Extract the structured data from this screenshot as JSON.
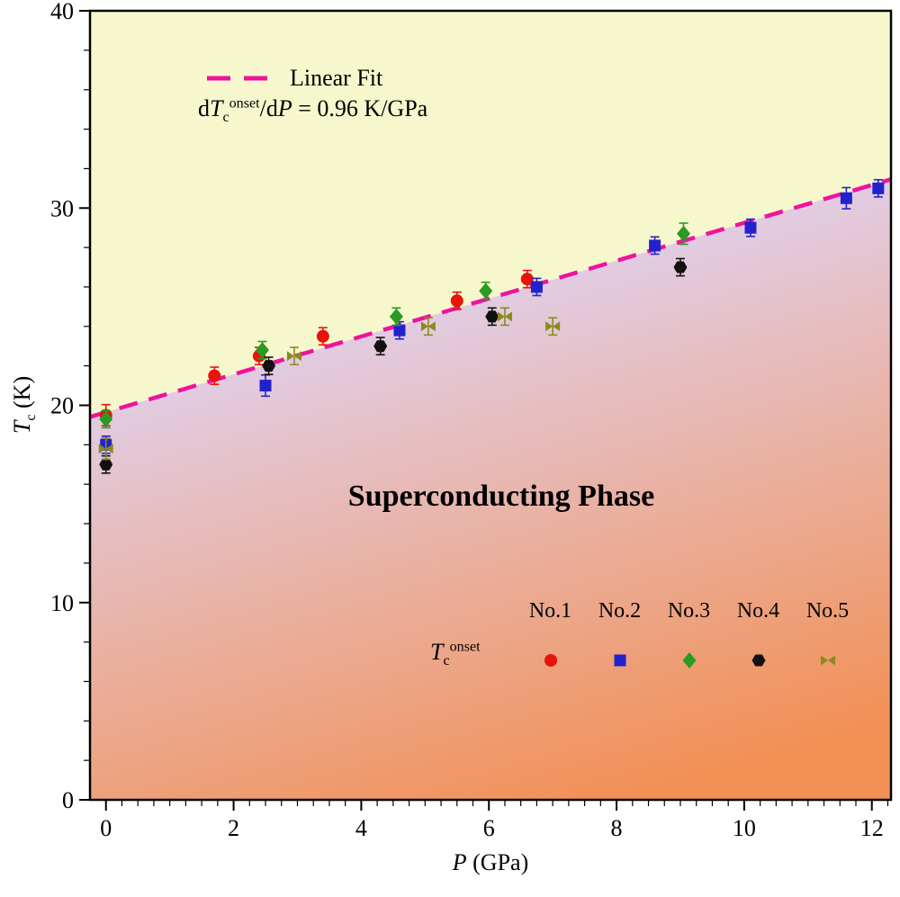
{
  "chart_data": {
    "type": "scatter",
    "xlabel_rich": [
      {
        "t": "P",
        "i": true
      },
      {
        "t": " (GPa)"
      }
    ],
    "ylabel_rich": [
      {
        "t": "T",
        "i": true
      },
      {
        "t": "c",
        "sub": true
      },
      {
        "t": " (K)"
      }
    ],
    "xlim": [
      -0.25,
      12.3
    ],
    "ylim": [
      0,
      40
    ],
    "x_major_ticks": [
      0,
      2,
      4,
      6,
      8,
      10,
      12
    ],
    "x_minor_step": 0.25,
    "y_major_ticks": [
      0,
      10,
      20,
      30,
      40
    ],
    "y_minor_step": 2,
    "fit": {
      "label": "Linear Fit",
      "slope": 0.96,
      "intercept": 19.65,
      "color": "#ef129f",
      "equation_rich": [
        {
          "t": "d"
        },
        {
          "t": "T",
          "i": true
        },
        {
          "t": "c",
          "sub": true
        },
        {
          "t": "onset",
          "sup": true
        },
        {
          "t": "/d"
        },
        {
          "t": "P",
          "i": true
        },
        {
          "t": " =  0.96 K/GPa"
        }
      ]
    },
    "phase_label": "Superconducting Phase",
    "background": {
      "upper_color": "#f7f7cd",
      "lower_gradient_top": "#e2cce2",
      "lower_gradient_bottom": "#f29055"
    },
    "legend": {
      "tc_label_rich": [
        {
          "t": "T",
          "i": true
        },
        {
          "t": "c",
          "sub": true
        },
        {
          "t": "onset",
          "sup": true
        }
      ],
      "entries": [
        "No.1",
        "No.2",
        "No.3",
        "No.4",
        "No.5"
      ]
    },
    "series": [
      {
        "name": "No.1",
        "marker": "circle",
        "color": "#e8140c",
        "points": [
          [
            0,
            19.5,
            0.4
          ],
          [
            1.7,
            21.5,
            0.3
          ],
          [
            2.4,
            22.5,
            0.3
          ],
          [
            3.4,
            23.5,
            0.3
          ],
          [
            5.5,
            25.3,
            0.3
          ],
          [
            6.6,
            26.4,
            0.3
          ]
        ]
      },
      {
        "name": "No.2",
        "marker": "square",
        "color": "#2222cc",
        "points": [
          [
            0,
            18.0,
            0.3
          ],
          [
            2.5,
            21.0,
            0.4
          ],
          [
            4.6,
            23.8,
            0.3
          ],
          [
            6.75,
            26.0,
            0.3
          ],
          [
            8.6,
            28.1,
            0.3
          ],
          [
            10.1,
            29.0,
            0.3
          ],
          [
            11.6,
            30.5,
            0.4
          ],
          [
            12.1,
            31.0,
            0.3
          ]
        ]
      },
      {
        "name": "No.3",
        "marker": "diamond",
        "color": "#2a9a22",
        "points": [
          [
            0,
            19.3,
            0.3
          ],
          [
            2.45,
            22.8,
            0.3
          ],
          [
            4.55,
            24.5,
            0.3
          ],
          [
            5.95,
            25.8,
            0.3
          ],
          [
            9.05,
            28.7,
            0.4
          ]
        ]
      },
      {
        "name": "No.4",
        "marker": "hexagon",
        "color": "#111111",
        "points": [
          [
            0,
            17.0,
            0.3
          ],
          [
            2.55,
            22.0,
            0.3
          ],
          [
            4.3,
            23.0,
            0.3
          ],
          [
            6.05,
            24.5,
            0.3
          ],
          [
            9.0,
            27.0,
            0.3
          ]
        ]
      },
      {
        "name": "No.5",
        "marker": "bowtie",
        "color": "#8a8a20",
        "points": [
          [
            0,
            17.8,
            0.4
          ],
          [
            2.95,
            22.5,
            0.3
          ],
          [
            5.05,
            24.0,
            0.3
          ],
          [
            6.25,
            24.5,
            0.3
          ],
          [
            7.0,
            24.0,
            0.3
          ]
        ]
      }
    ]
  }
}
